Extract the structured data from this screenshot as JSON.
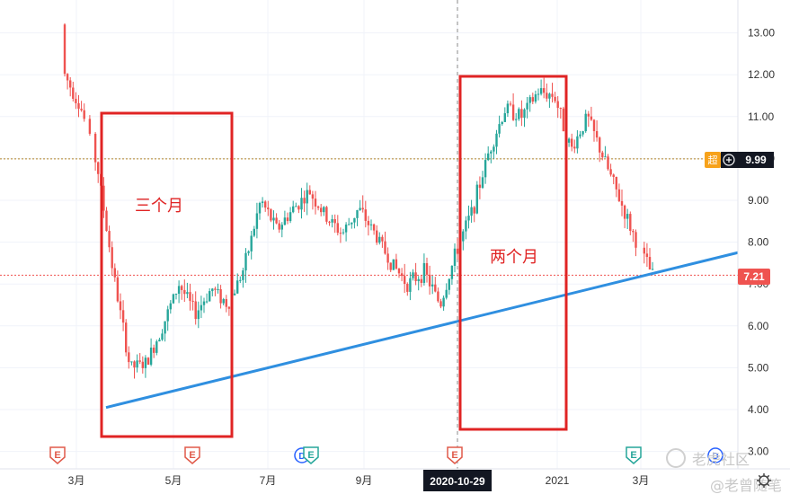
{
  "chart_data": {
    "type": "candlestick",
    "ylim": [
      3.0,
      13.5
    ],
    "y_ticks": [
      "13.00",
      "12.00",
      "11.00",
      "10.00",
      "9.00",
      "8.00",
      "7.00",
      "6.00",
      "5.00",
      "4.00",
      "3.00"
    ],
    "x_labels": [
      "3月",
      "5月",
      "7月",
      "9月",
      "2020-10-29",
      "2021",
      "3月"
    ],
    "crosshair_date": "2020-10-29",
    "price_labels": {
      "last": "7.21",
      "crosshair": "9.99",
      "crosshair_prefix": "超"
    },
    "earnings_markers": [
      "E",
      "E",
      "E",
      "E",
      "E"
    ],
    "dividend_markers": [
      "D",
      "D"
    ],
    "annotations": [
      "三个月",
      "两个月"
    ],
    "trendline": {
      "from": 4.05,
      "to": 7.75,
      "color": "#2f8fe0"
    },
    "colors": {
      "up": "#26a69a",
      "down": "#ef5350",
      "box": "#e02424"
    },
    "ohlc_anchors": [
      [
        13.2,
        13.3,
        11.8,
        12.0
      ],
      [
        11.9,
        12.6,
        11.0,
        11.2
      ],
      [
        10.5,
        10.8,
        9.6,
        9.8
      ],
      [
        8.5,
        8.6,
        6.8,
        7.2
      ],
      [
        6.5,
        6.6,
        4.8,
        5.0
      ],
      [
        4.5,
        5.3,
        4.2,
        5.1
      ],
      [
        5.3,
        6.2,
        5.2,
        6.0
      ],
      [
        6.1,
        7.3,
        5.9,
        7.0
      ],
      [
        6.8,
        7.0,
        6.0,
        6.3
      ],
      [
        6.4,
        7.2,
        6.2,
        6.9
      ],
      [
        6.8,
        7.1,
        6.0,
        6.5
      ],
      [
        6.6,
        7.5,
        6.4,
        7.4
      ],
      [
        7.6,
        9.7,
        7.4,
        9.0
      ],
      [
        8.5,
        8.9,
        7.9,
        8.3
      ],
      [
        8.4,
        9.0,
        8.2,
        8.8
      ],
      [
        8.6,
        9.3,
        8.5,
        9.2
      ],
      [
        9.1,
        9.2,
        8.5,
        8.6
      ],
      [
        8.5,
        9.0,
        8.0,
        8.2
      ],
      [
        8.3,
        9.0,
        8.1,
        8.8
      ],
      [
        8.6,
        8.9,
        8.0,
        8.2
      ],
      [
        7.8,
        8.0,
        7.2,
        7.5
      ],
      [
        7.4,
        7.5,
        6.8,
        7.0
      ],
      [
        7.0,
        7.5,
        6.7,
        7.3
      ],
      [
        7.2,
        7.6,
        6.3,
        6.5
      ],
      [
        6.6,
        8.0,
        6.5,
        7.8
      ],
      [
        8.0,
        9.0,
        7.9,
        8.8
      ],
      [
        9.0,
        10.3,
        8.9,
        10.2
      ],
      [
        10.3,
        11.4,
        10.2,
        11.2
      ],
      [
        11.1,
        11.5,
        10.8,
        11.0
      ],
      [
        11.2,
        11.8,
        11.0,
        11.6
      ],
      [
        11.6,
        12.0,
        11.3,
        11.5
      ],
      [
        11.3,
        11.4,
        9.7,
        10.2
      ],
      [
        10.3,
        11.4,
        10.2,
        11.0
      ],
      [
        11.0,
        11.1,
        9.8,
        10.0
      ],
      [
        9.8,
        9.9,
        9.0,
        9.0
      ],
      [
        8.8,
        9.1,
        7.8,
        8.0
      ],
      [
        7.9,
        8.0,
        7.1,
        7.21
      ]
    ]
  },
  "watermark": {
    "text1": "老虎社区",
    "text2": "@老曾随笔"
  }
}
